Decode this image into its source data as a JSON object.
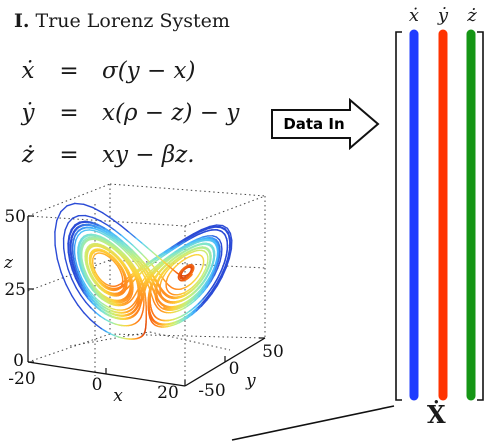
{
  "section": {
    "number": "I.",
    "title": "True Lorenz System"
  },
  "equations": [
    {
      "lhs": "ẋ",
      "eq": "=",
      "rhs": "σ(y − x)"
    },
    {
      "lhs": "ẏ",
      "eq": "=",
      "rhs": "x(ρ − z) − y"
    },
    {
      "lhs": "ż",
      "eq": "=",
      "rhs": "xy − βz."
    }
  ],
  "arrow": {
    "label": "Data In"
  },
  "matrix": {
    "columns": [
      {
        "label": "ẋ",
        "color": "#1f3cff"
      },
      {
        "label": "ẏ",
        "color": "#ff3300"
      },
      {
        "label": "ż",
        "color": "#159615"
      }
    ],
    "symbol": "Ẋ"
  },
  "plot3d": {
    "z_axis": {
      "label": "z",
      "ticks": [
        "0",
        "25",
        "50"
      ]
    },
    "x_axis": {
      "label": "x",
      "ticks": [
        "-20",
        "0",
        "20"
      ]
    },
    "y_axis": {
      "label": "y",
      "ticks": [
        "-50",
        "0",
        "50"
      ]
    },
    "colormap": [
      "#2b4bd6",
      "#45b8ff",
      "#7ee6d0",
      "#c8f07a",
      "#ffd23a",
      "#ff7a1a",
      "#c21a00"
    ]
  }
}
